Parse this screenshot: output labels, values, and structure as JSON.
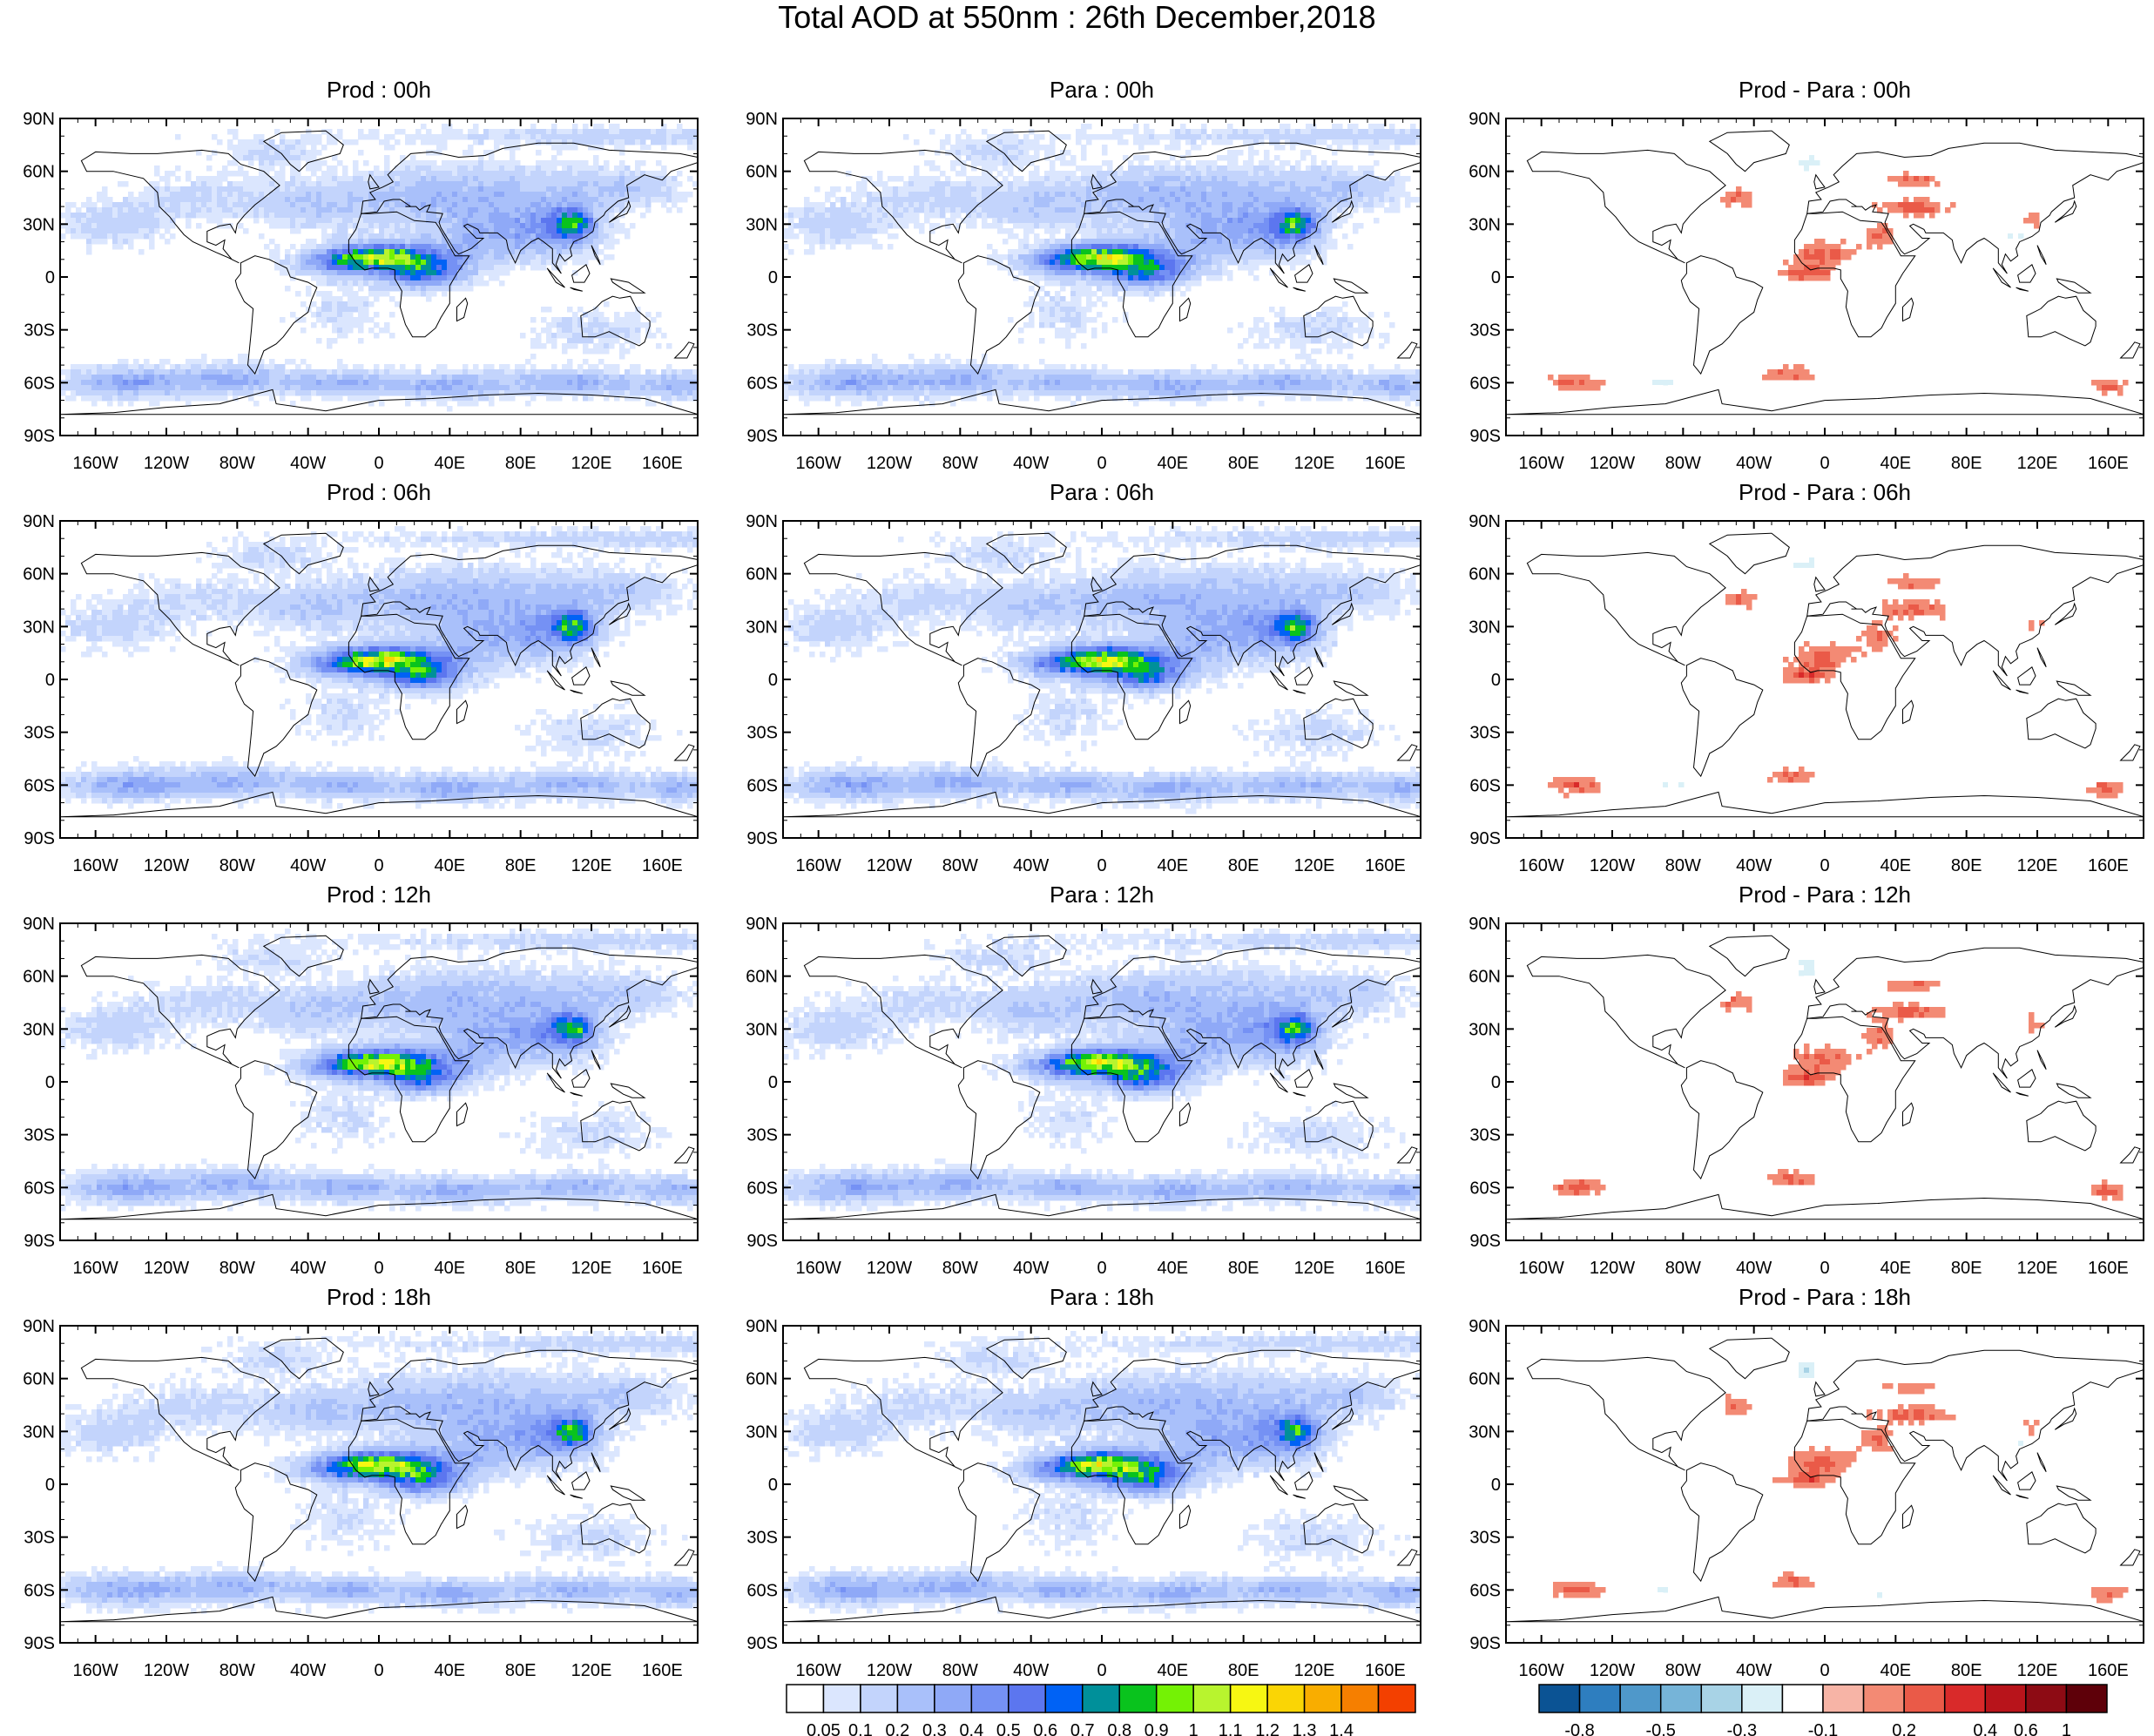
{
  "title": "Total AOD at 550nm : 26th December,2018",
  "panels": [
    {
      "id": "prod-00",
      "title": "Prod : 00h",
      "kind": "aod",
      "seed": 11
    },
    {
      "id": "para-00",
      "title": "Para : 00h",
      "kind": "aod",
      "seed": 12
    },
    {
      "id": "diff-00",
      "title": "Prod - Para : 00h",
      "kind": "diff",
      "seed": 13
    },
    {
      "id": "prod-06",
      "title": "Prod : 06h",
      "kind": "aod",
      "seed": 21
    },
    {
      "id": "para-06",
      "title": "Para : 06h",
      "kind": "aod",
      "seed": 22
    },
    {
      "id": "diff-06",
      "title": "Prod - Para : 06h",
      "kind": "diff",
      "seed": 23
    },
    {
      "id": "prod-12",
      "title": "Prod : 12h",
      "kind": "aod",
      "seed": 31
    },
    {
      "id": "para-12",
      "title": "Para : 12h",
      "kind": "aod",
      "seed": 32
    },
    {
      "id": "diff-12",
      "title": "Prod - Para : 12h",
      "kind": "diff",
      "seed": 33
    },
    {
      "id": "prod-18",
      "title": "Prod : 18h",
      "kind": "aod",
      "seed": 41
    },
    {
      "id": "para-18",
      "title": "Para : 18h",
      "kind": "aod",
      "seed": 42
    },
    {
      "id": "diff-18",
      "title": "Prod - Para : 18h",
      "kind": "diff",
      "seed": 43
    }
  ],
  "lat_labels": [
    "90N",
    "60N",
    "30N",
    "0",
    "30S",
    "60S",
    "90S"
  ],
  "lon_labels": [
    "160W",
    "120W",
    "80W",
    "40W",
    "0",
    "40E",
    "80E",
    "120E",
    "160E"
  ],
  "aod_colorbar": {
    "labels": [
      "0.05",
      "0.1",
      "0.2",
      "0.3",
      "0.4",
      "0.5",
      "0.6",
      "0.7",
      "0.8",
      "0.9",
      "1",
      "1.1",
      "1.2",
      "1.3",
      "1.4"
    ],
    "colors": [
      "#ffffff",
      "#dbe6fe",
      "#c3d4fc",
      "#a9c0fa",
      "#8fa9f7",
      "#7591f4",
      "#5c76ef",
      "#0062f5",
      "#00909a",
      "#09c31d",
      "#74f205",
      "#b8f42e",
      "#f7f712",
      "#fad505",
      "#f9ad00",
      "#f67f00",
      "#f34000"
    ]
  },
  "diff_colorbar": {
    "labels": [
      "-0.8",
      "-0.5",
      "-0.3",
      "-0.1",
      "0.2",
      "0.4",
      "0.6",
      "1"
    ],
    "colors": [
      "#0b5394",
      "#2e7ebf",
      "#4f98ca",
      "#76b4d8",
      "#a8d3e6",
      "#daf0f7",
      "#ffffff",
      "#f7b4a6",
      "#f38a74",
      "#ea5a48",
      "#d92a2a",
      "#b8141b",
      "#8d0b14",
      "#5e0009"
    ]
  }
}
